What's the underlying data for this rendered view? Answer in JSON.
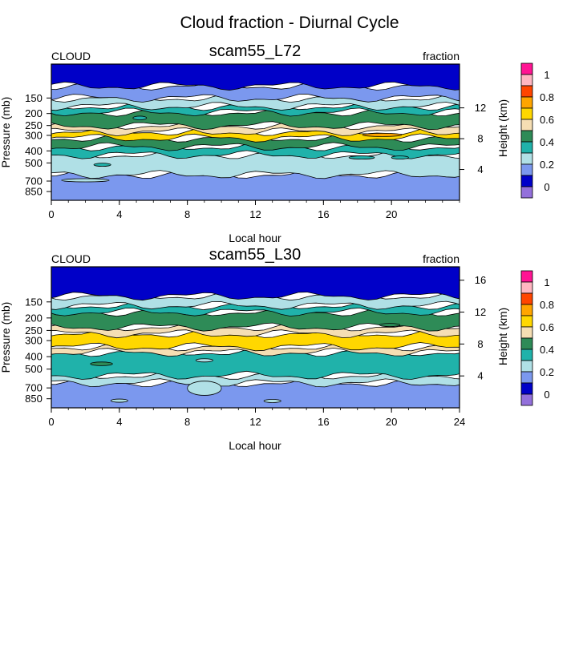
{
  "title": "Cloud fraction - Diurnal Cycle",
  "chart_data": [
    {
      "type": "heatmap",
      "title": "scam55_L72",
      "left_label": "CLOUD",
      "right_label": "fraction",
      "xlabel": "Local hour",
      "ylabel": "Pressure (mb)",
      "y2label": "Height (km)",
      "xlim": [
        0,
        24
      ],
      "x_ticks": [
        "0",
        "4",
        "8",
        "12",
        "16",
        "20"
      ],
      "y_ticks": [
        "150",
        "200",
        "250",
        "300",
        "400",
        "500",
        "700",
        "850"
      ],
      "y2_ticks": [
        "4",
        "8",
        "12"
      ],
      "levels": [
        0,
        0.1,
        0.2,
        0.3,
        0.4,
        0.5,
        0.6,
        0.7,
        0.8,
        0.9,
        1.0
      ],
      "colorbar_labels": [
        "1",
        "0.8",
        "0.6",
        "0.4",
        "0.2",
        "0"
      ],
      "bands": [
        {
          "p_bottom": 1000,
          "p_top": 620,
          "fraction": 0.15
        },
        {
          "p_bottom": 620,
          "p_top": 430,
          "fraction": 0.25
        },
        {
          "p_bottom": 430,
          "p_top": 370,
          "fraction": 0.35
        },
        {
          "p_bottom": 370,
          "p_top": 315,
          "fraction": 0.45
        },
        {
          "p_bottom": 315,
          "p_top": 280,
          "fraction": 0.65
        },
        {
          "p_bottom": 280,
          "p_top": 250,
          "fraction": 0.55
        },
        {
          "p_bottom": 250,
          "p_top": 195,
          "fraction": 0.45
        },
        {
          "p_bottom": 195,
          "p_top": 175,
          "fraction": 0.35
        },
        {
          "p_bottom": 175,
          "p_top": 150,
          "fraction": 0.25
        },
        {
          "p_bottom": 150,
          "p_top": 120,
          "fraction": 0.15
        },
        {
          "p_bottom": 120,
          "p_top": 80,
          "fraction": 0.05
        }
      ],
      "patches": [
        {
          "x0": 18.3,
          "x1": 20.6,
          "p_top": 290,
          "p_bottom": 305,
          "fraction": 0.75
        },
        {
          "x0": 4.8,
          "x1": 5.6,
          "p_top": 210,
          "p_bottom": 225,
          "fraction": 0.35
        },
        {
          "x0": 0.6,
          "x1": 3.4,
          "p_top": 680,
          "p_bottom": 700,
          "fraction": 0.25
        },
        {
          "x0": 2.5,
          "x1": 3.5,
          "p_top": 510,
          "p_bottom": 525,
          "fraction": 0.35
        },
        {
          "x0": 17.5,
          "x1": 19.0,
          "p_top": 445,
          "p_bottom": 460,
          "fraction": 0.35
        },
        {
          "x0": 20.0,
          "x1": 21.0,
          "p_top": 445,
          "p_bottom": 460,
          "fraction": 0.35
        }
      ]
    },
    {
      "type": "heatmap",
      "title": "scam55_L30",
      "left_label": "CLOUD",
      "right_label": "fraction",
      "xlabel": "Local hour",
      "ylabel": "Pressure (mb)",
      "y2label": "Height (km)",
      "xlim": [
        0,
        24
      ],
      "x_ticks": [
        "0",
        "4",
        "8",
        "12",
        "16",
        "20",
        "24"
      ],
      "y_ticks": [
        "150",
        "200",
        "250",
        "300",
        "400",
        "500",
        "700",
        "850"
      ],
      "y2_ticks": [
        "4",
        "8",
        "12",
        "16"
      ],
      "levels": [
        0,
        0.1,
        0.2,
        0.3,
        0.4,
        0.5,
        0.6,
        0.7,
        0.8,
        0.9,
        1.0
      ],
      "colorbar_labels": [
        "1",
        "0.8",
        "0.6",
        "0.4",
        "0.2",
        "0"
      ],
      "bands": [
        {
          "p_bottom": 1000,
          "p_top": 640,
          "fraction": 0.15
        },
        {
          "p_bottom": 640,
          "p_top": 560,
          "fraction": 0.25
        },
        {
          "p_bottom": 560,
          "p_top": 370,
          "fraction": 0.35
        },
        {
          "p_bottom": 370,
          "p_top": 335,
          "fraction": 0.55
        },
        {
          "p_bottom": 335,
          "p_top": 265,
          "fraction": 0.65
        },
        {
          "p_bottom": 265,
          "p_top": 235,
          "fraction": 0.55
        },
        {
          "p_bottom": 235,
          "p_top": 180,
          "fraction": 0.45
        },
        {
          "p_bottom": 180,
          "p_top": 160,
          "fraction": 0.35
        },
        {
          "p_bottom": 160,
          "p_top": 135,
          "fraction": 0.25
        },
        {
          "p_bottom": 135,
          "p_top": 80,
          "fraction": 0.05
        }
      ],
      "patches": [
        {
          "x0": 8.0,
          "x1": 10.0,
          "p_top": 620,
          "p_bottom": 800,
          "fraction": 0.25
        },
        {
          "x0": 3.5,
          "x1": 4.5,
          "p_top": 860,
          "p_bottom": 900,
          "fraction": 0.25
        },
        {
          "x0": 12.5,
          "x1": 13.5,
          "p_top": 870,
          "p_bottom": 900,
          "fraction": 0.25
        },
        {
          "x0": 2.3,
          "x1": 3.6,
          "p_top": 440,
          "p_bottom": 470,
          "fraction": 0.45
        },
        {
          "x0": 8.5,
          "x1": 9.5,
          "p_top": 415,
          "p_bottom": 440,
          "fraction": 0.25
        },
        {
          "x0": 19.3,
          "x1": 20.5,
          "p_top": 222,
          "p_bottom": 232,
          "fraction": 0.45
        }
      ]
    }
  ]
}
